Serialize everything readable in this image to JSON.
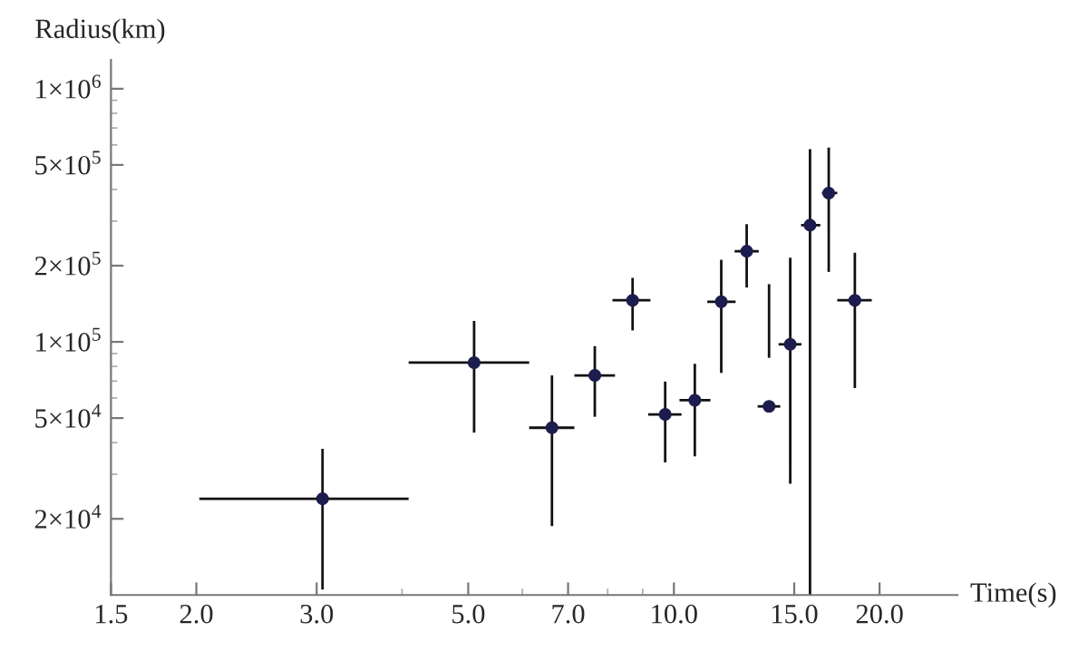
{
  "chart_data": {
    "type": "scatter",
    "xlabel": "Time(s)",
    "ylabel": "Radius(km)",
    "log": "xy",
    "grid": false,
    "marker": "circle",
    "xlim": [
      1.5,
      26
    ],
    "ylim": [
      10000,
      1300000
    ],
    "xticks": [
      1.5,
      {
        "value": 2,
        "label": "2.0"
      },
      {
        "value": 3,
        "label": "3.0"
      },
      {
        "value": 5,
        "label": "5.0"
      },
      {
        "value": 7,
        "label": "7.0"
      },
      {
        "value": 10,
        "label": "10.0"
      },
      {
        "value": 15,
        "label": "15.0"
      },
      {
        "value": 20,
        "label": "20.0"
      }
    ],
    "yticks": [
      {
        "value": 20000,
        "label": "2×10$^{4}$"
      },
      {
        "value": 50000,
        "label": "5×10$^{4}$"
      },
      {
        "value": 100000,
        "label": "1×10$^{5}$"
      },
      {
        "value": 200000,
        "label": "2×10$^{5}$"
      },
      {
        "value": 500000,
        "label": "5×10$^{5}$"
      },
      {
        "value": 1000000,
        "label": "1×10$^{6}$"
      }
    ],
    "series": [
      {
        "color": "#1c1c4e",
        "x": [
          3.06,
          5.1,
          6.63,
          7.66,
          8.7,
          9.71,
          10.73,
          11.73,
          12.78,
          13.78,
          14.8,
          15.82,
          16.85,
          18.4
        ],
        "values": [
          24000,
          82800,
          45800,
          73700,
          146000,
          51700,
          58800,
          144000,
          228000,
          55600,
          97800,
          289000,
          387000,
          146000
        ],
        "errors": [
          [
            10500,
            37800
          ],
          [
            43800,
            121000
          ],
          [
            18700,
            73700
          ],
          [
            50600,
            96200
          ],
          [
            111000,
            179000
          ],
          [
            33400,
            69700
          ],
          [
            35300,
            81900
          ],
          [
            75400,
            211000
          ],
          [
            164000,
            292000
          ],
          [
            86500,
            169000
          ],
          [
            27500,
            215000
          ],
          [
            10000,
            577000
          ],
          [
            189000,
            586000
          ],
          [
            65700,
            225000
          ]
        ],
        "xerrors": [
          [
            2.02,
            4.09
          ],
          [
            4.09,
            6.14
          ],
          [
            6.14,
            7.15
          ],
          [
            7.15,
            8.2
          ],
          [
            8.13,
            9.24
          ],
          [
            9.17,
            10.26
          ],
          [
            10.19,
            11.31
          ],
          [
            11.19,
            12.31
          ],
          [
            12.27,
            13.31
          ],
          [
            13.26,
            14.31
          ],
          [
            14.23,
            15.37
          ],
          [
            15.35,
            16.38
          ],
          [
            16.47,
            17.34
          ],
          [
            17.34,
            19.48
          ]
        ]
      }
    ]
  }
}
